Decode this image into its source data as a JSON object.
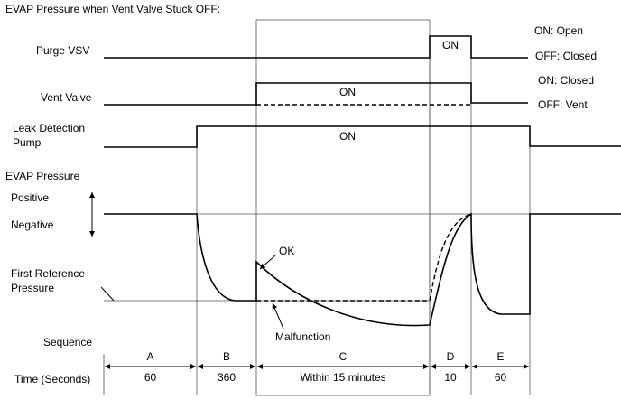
{
  "title": "EVAP Pressure when Vent Valve Stuck OFF:",
  "rows": {
    "purge_vsv": "Purge VSV",
    "vent_valve": "Vent Valve",
    "leak_detection_pump": [
      "Leak Detection",
      "Pump"
    ],
    "evap_pressure": "EVAP Pressure",
    "positive": "Positive",
    "negative": "Negative",
    "first_reference_pressure": [
      "First Reference",
      "Pressure"
    ],
    "sequence": "Sequence",
    "time": "Time (Seconds)"
  },
  "states": {
    "purge_on": "ON: Open",
    "purge_off": "OFF: Closed",
    "vent_on": "ON: Closed",
    "vent_off": "OFF: Vent"
  },
  "signals": {
    "purge_on": "ON",
    "vent_on": "ON",
    "pump_on": "ON",
    "ok": "OK",
    "malfunction": "Malfunction"
  },
  "sequence": [
    {
      "step": "A",
      "time": "60"
    },
    {
      "step": "B",
      "time": "360"
    },
    {
      "step": "C",
      "time": "Within 15 minutes"
    },
    {
      "step": "D",
      "time": "10"
    },
    {
      "step": "E",
      "time": "60"
    }
  ]
}
